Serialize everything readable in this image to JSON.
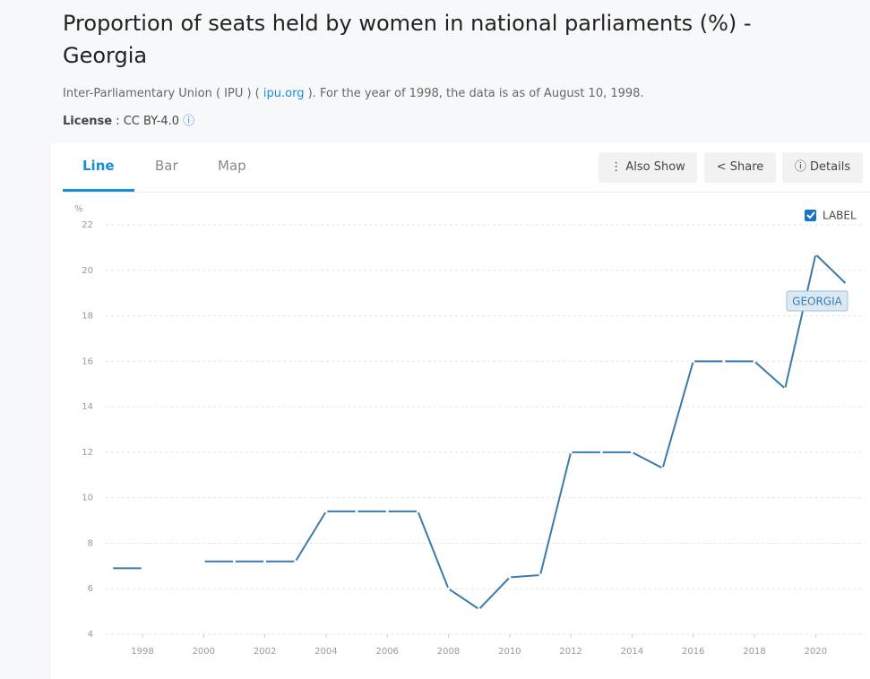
{
  "header": {
    "title": "Proportion of seats held by women in national parliaments (%) - Georgia",
    "source_prefix": "Inter-Parliamentary Union ( IPU ) (",
    "source_link": "ipu.org",
    "source_suffix": "). For the year of 1998, the data is as of August 10, 1998.",
    "license_label": "License",
    "license_value": ": CC BY-4.0"
  },
  "tabs": [
    "Line",
    "Bar",
    "Map"
  ],
  "buttons": [
    "Also Show",
    "Share",
    "Details"
  ],
  "chart_data": {
    "type": "line",
    "y_label": "%",
    "legend": "LABEL",
    "x": [
      1997,
      1998,
      1999,
      2000,
      2001,
      2002,
      2003,
      2004,
      2005,
      2006,
      2007,
      2008,
      2009,
      2010,
      2011,
      2012,
      2013,
      2014,
      2015,
      2016,
      2017,
      2018,
      2019,
      2020,
      2021
    ],
    "series": [
      {
        "name": "GEORGIA",
        "color": "#3b7bab",
        "values": [
          6.9,
          6.9,
          null,
          7.2,
          7.2,
          7.2,
          7.2,
          9.4,
          9.4,
          9.4,
          9.4,
          6.0,
          5.1,
          6.5,
          6.6,
          12.0,
          12.0,
          12.0,
          11.3,
          16.0,
          16.0,
          16.0,
          14.8,
          20.7,
          19.4
        ]
      }
    ],
    "xlim": [
      1996.8,
      2021.6
    ],
    "xticks": [
      1998,
      2000,
      2002,
      2004,
      2006,
      2008,
      2010,
      2012,
      2014,
      2016,
      2018,
      2020
    ],
    "ylim": [
      4,
      22
    ],
    "yticks": [
      4,
      6,
      8,
      10,
      12,
      14,
      16,
      18,
      20,
      22
    ],
    "grid": true
  }
}
